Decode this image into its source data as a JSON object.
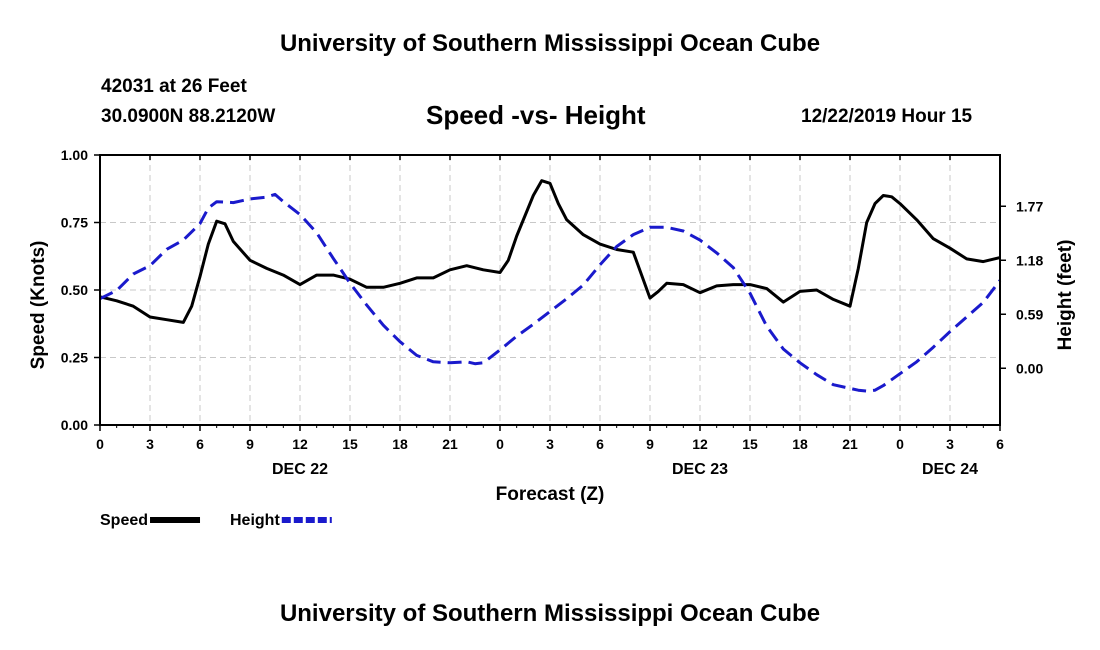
{
  "page": {
    "title_top": "University of Southern Mississippi Ocean Cube",
    "title_bottom": "University of Southern Mississippi Ocean Cube",
    "station": "42031 at 26 Feet",
    "coords": "30.0900N 88.2120W",
    "subtitle": "Speed -vs- Height",
    "datetime": "12/22/2019 Hour 15"
  },
  "colors": {
    "speed": "#000000",
    "height": "#1a1acc",
    "grid": "#c8c8c8"
  },
  "chart_data": {
    "type": "line",
    "title": "Speed -vs- Height",
    "xlabel": "Forecast (Z)",
    "ylabel": "Speed (Knots)",
    "y2label": "Height (feet)",
    "xlim": [
      0,
      54
    ],
    "ylim": [
      0,
      1.0
    ],
    "y2lim": [
      -0.62,
      2.33
    ],
    "x_ticks": [
      0,
      3,
      6,
      9,
      12,
      15,
      18,
      21,
      24,
      27,
      30,
      33,
      36,
      39,
      42,
      45,
      48,
      51,
      54
    ],
    "x_tick_labels": [
      "0",
      "3",
      "6",
      "9",
      "12",
      "15",
      "18",
      "21",
      "0",
      "3",
      "6",
      "9",
      "12",
      "15",
      "18",
      "21",
      "0",
      "3",
      "6"
    ],
    "day_labels": [
      {
        "x": 12,
        "label": "DEC 22"
      },
      {
        "x": 36,
        "label": "DEC 23"
      },
      {
        "x": 51,
        "label": "DEC 24"
      }
    ],
    "y_ticks": [
      0,
      0.25,
      0.5,
      0.75,
      1.0
    ],
    "y_tick_labels": [
      "0.00",
      "0.25",
      "0.50",
      "0.75",
      "1.00"
    ],
    "y2_ticks": [
      0.0,
      0.59,
      1.18,
      1.77
    ],
    "y2_tick_labels": [
      "0.00",
      "0.59",
      "1.18",
      "1.77"
    ],
    "series": [
      {
        "name": "Speed",
        "axis": "left",
        "style": "solid",
        "x": [
          0,
          1,
          2,
          3,
          4,
          5,
          5.5,
          6,
          6.5,
          7,
          7.5,
          8,
          9,
          10,
          11,
          12,
          13,
          14,
          15,
          16,
          17,
          18,
          19,
          20,
          21,
          22,
          23,
          24,
          24.5,
          25,
          26,
          26.5,
          27,
          27.5,
          28,
          29,
          30,
          31,
          32,
          33,
          33.5,
          34,
          35,
          36,
          37,
          38,
          39,
          40,
          41,
          42,
          43,
          44,
          45,
          45.5,
          46,
          46.5,
          47,
          47.5,
          48,
          49,
          50,
          51,
          52,
          53,
          54
        ],
        "values": [
          0.475,
          0.46,
          0.44,
          0.4,
          0.39,
          0.38,
          0.44,
          0.55,
          0.67,
          0.755,
          0.745,
          0.68,
          0.61,
          0.58,
          0.555,
          0.52,
          0.555,
          0.555,
          0.54,
          0.51,
          0.51,
          0.525,
          0.545,
          0.545,
          0.575,
          0.59,
          0.575,
          0.565,
          0.61,
          0.7,
          0.85,
          0.905,
          0.895,
          0.82,
          0.76,
          0.705,
          0.67,
          0.65,
          0.64,
          0.47,
          0.495,
          0.525,
          0.52,
          0.49,
          0.515,
          0.52,
          0.52,
          0.505,
          0.455,
          0.495,
          0.5,
          0.465,
          0.44,
          0.58,
          0.75,
          0.82,
          0.85,
          0.845,
          0.82,
          0.76,
          0.69,
          0.655,
          0.615,
          0.605,
          0.62
        ]
      },
      {
        "name": "Height",
        "axis": "right",
        "style": "dashed",
        "x": [
          0,
          1,
          2,
          3,
          4,
          5,
          6,
          6.5,
          7,
          8,
          9,
          10,
          10.5,
          11,
          12,
          13,
          14,
          15,
          16,
          17,
          18,
          19,
          20,
          21,
          22,
          22.5,
          23,
          24,
          25,
          26,
          27,
          28,
          29,
          30,
          31,
          32,
          33,
          34,
          35,
          36,
          37,
          38,
          39,
          40,
          41,
          42,
          43,
          44,
          45,
          45.5,
          46,
          46.5,
          47,
          48,
          49,
          50,
          51,
          52,
          53,
          54
        ],
        "values": [
          0.76,
          0.85,
          1.03,
          1.12,
          1.3,
          1.4,
          1.58,
          1.75,
          1.82,
          1.81,
          1.85,
          1.87,
          1.9,
          1.82,
          1.68,
          1.48,
          1.2,
          0.93,
          0.69,
          0.47,
          0.29,
          0.14,
          0.07,
          0.06,
          0.07,
          0.05,
          0.06,
          0.2,
          0.35,
          0.48,
          0.62,
          0.76,
          0.91,
          1.13,
          1.33,
          1.46,
          1.54,
          1.54,
          1.5,
          1.4,
          1.26,
          1.1,
          0.82,
          0.46,
          0.21,
          0.06,
          -0.07,
          -0.18,
          -0.22,
          -0.24,
          -0.25,
          -0.24,
          -0.19,
          -0.06,
          0.07,
          0.23,
          0.4,
          0.56,
          0.72,
          0.96
        ]
      }
    ],
    "legend": [
      {
        "label": "Speed",
        "style": "solid"
      },
      {
        "label": "Height",
        "style": "dashed"
      }
    ],
    "legend_position": "bottom-left",
    "grid": true
  }
}
